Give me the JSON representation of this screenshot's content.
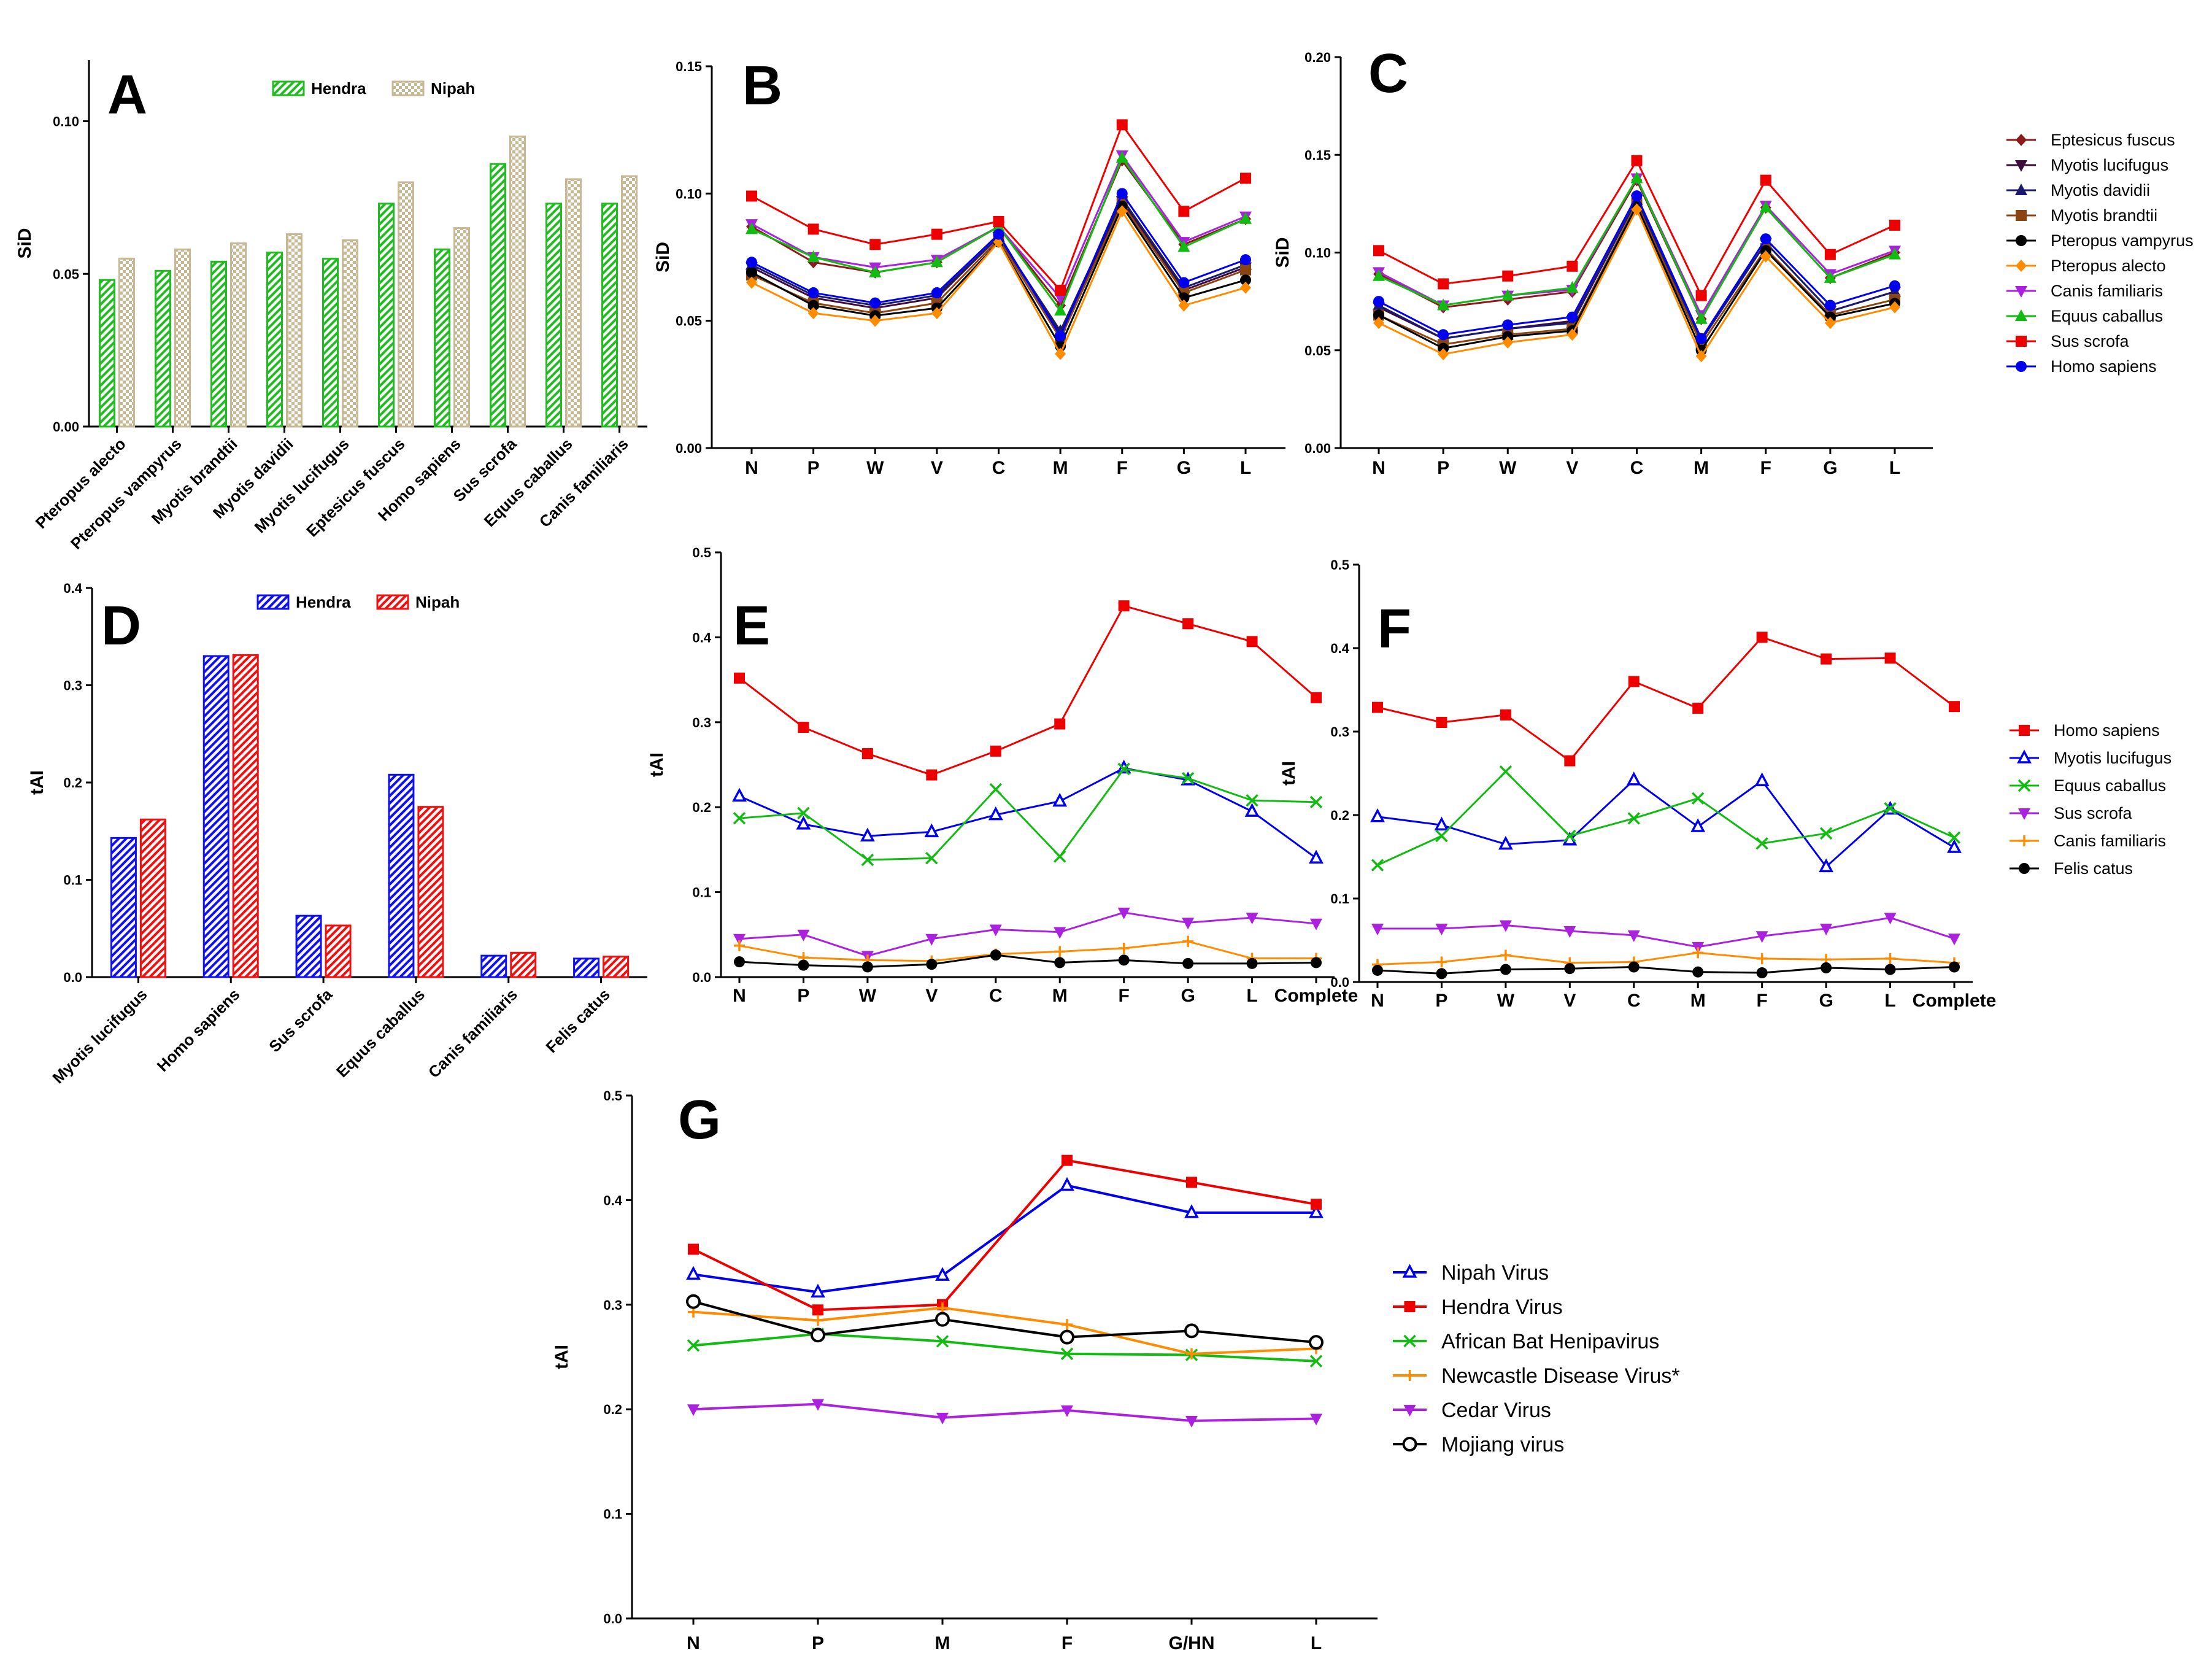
{
  "colors": {
    "green": "#22bb22",
    "tan": "#c8b894",
    "blue": "#1111ee",
    "red": "#ee1111",
    "darkred": "#8b1a1a",
    "darkpurple": "#3d0b3d",
    "navy": "#1a1a6e",
    "brown": "#8b4513",
    "black": "#000000",
    "orange": "#ff8c00",
    "magenta": "#aa22dd",
    "limegreen": "#11bb11",
    "scarlet": "#ee0000",
    "royalblue": "#0000ee"
  },
  "chart_data": [
    {
      "id": "A",
      "panel_label": "A",
      "type": "bar",
      "ylabel": "SiD",
      "ylim": [
        0,
        0.12
      ],
      "yticks": [
        "0.00",
        "0.05",
        "0.10"
      ],
      "categories": [
        "Pteropus alecto",
        "Pteropus vampyrus",
        "Myotis brandtii",
        "Myotis davidii",
        "Myotis lucifugus",
        "Eptesicus fuscus",
        "Homo sapiens",
        "Sus scrofa",
        "Equus caballus",
        "Canis familiaris"
      ],
      "legend": "top-center",
      "series": [
        {
          "name": "Hendra",
          "color": "green",
          "pattern": "diag",
          "values": [
            0.048,
            0.051,
            0.054,
            0.057,
            0.055,
            0.073,
            0.058,
            0.086,
            0.073,
            0.073
          ]
        },
        {
          "name": "Nipah",
          "color": "tan",
          "pattern": "check",
          "values": [
            0.055,
            0.058,
            0.06,
            0.063,
            0.061,
            0.08,
            0.065,
            0.095,
            0.081,
            0.082
          ]
        }
      ]
    },
    {
      "id": "B",
      "panel_label": "B",
      "type": "line",
      "ylabel": "SiD",
      "ylim": [
        0,
        0.15
      ],
      "yticks": [
        "0.00",
        "0.05",
        "0.10",
        "0.15"
      ],
      "categories": [
        "N",
        "P",
        "W",
        "V",
        "C",
        "M",
        "F",
        "G",
        "L"
      ],
      "series": [
        {
          "name": "Eptesicus fuscus",
          "color": "darkred",
          "marker": "diamond",
          "values": [
            0.087,
            0.073,
            0.069,
            0.073,
            0.087,
            0.056,
            0.113,
            0.08,
            0.09
          ]
        },
        {
          "name": "Myotis lucifugus",
          "color": "darkpurple",
          "marker": "tri-down",
          "values": [
            0.071,
            0.059,
            0.055,
            0.059,
            0.083,
            0.045,
            0.097,
            0.062,
            0.071
          ]
        },
        {
          "name": "Myotis davidii",
          "color": "navy",
          "marker": "tri-up",
          "values": [
            0.072,
            0.06,
            0.056,
            0.06,
            0.083,
            0.046,
            0.098,
            0.063,
            0.072
          ]
        },
        {
          "name": "Myotis brandtii",
          "color": "brown",
          "marker": "square",
          "values": [
            0.068,
            0.057,
            0.053,
            0.057,
            0.082,
            0.043,
            0.096,
            0.061,
            0.07
          ]
        },
        {
          "name": "Pteropus vampyrus",
          "color": "black",
          "marker": "circle",
          "values": [
            0.069,
            0.056,
            0.052,
            0.055,
            0.081,
            0.04,
            0.095,
            0.059,
            0.066
          ]
        },
        {
          "name": "Pteropus alecto",
          "color": "orange",
          "marker": "diamond",
          "values": [
            0.065,
            0.053,
            0.05,
            0.053,
            0.081,
            0.037,
            0.093,
            0.056,
            0.063
          ]
        },
        {
          "name": "Canis familiaris",
          "color": "magenta",
          "marker": "tri-down",
          "values": [
            0.088,
            0.075,
            0.071,
            0.074,
            0.087,
            0.059,
            0.115,
            0.081,
            0.091
          ]
        },
        {
          "name": "Equus caballus",
          "color": "limegreen",
          "marker": "tri-up",
          "values": [
            0.086,
            0.075,
            0.069,
            0.073,
            0.087,
            0.054,
            0.114,
            0.079,
            0.09
          ]
        },
        {
          "name": "Sus scrofa",
          "color": "scarlet",
          "marker": "square",
          "values": [
            0.099,
            0.086,
            0.08,
            0.084,
            0.089,
            0.062,
            0.127,
            0.093,
            0.106
          ]
        },
        {
          "name": "Homo sapiens",
          "color": "royalblue",
          "marker": "circle",
          "values": [
            0.073,
            0.061,
            0.057,
            0.061,
            0.084,
            0.044,
            0.1,
            0.065,
            0.074
          ]
        }
      ]
    },
    {
      "id": "C",
      "panel_label": "C",
      "type": "line",
      "ylabel": "SiD",
      "ylim": [
        0,
        0.2
      ],
      "yticks": [
        "0.00",
        "0.05",
        "0.10",
        "0.15",
        "0.20"
      ],
      "categories": [
        "N",
        "P",
        "W",
        "V",
        "C",
        "M",
        "F",
        "G",
        "L"
      ],
      "legend": "right",
      "series": [
        {
          "name": "Eptesicus fuscus",
          "color": "darkred",
          "marker": "diamond",
          "values": [
            0.089,
            0.072,
            0.076,
            0.08,
            0.137,
            0.066,
            0.123,
            0.087,
            0.1
          ]
        },
        {
          "name": "Myotis lucifugus",
          "color": "darkpurple",
          "marker": "tri-down",
          "values": [
            0.072,
            0.056,
            0.061,
            0.065,
            0.127,
            0.055,
            0.105,
            0.07,
            0.08
          ]
        },
        {
          "name": "Myotis davidii",
          "color": "navy",
          "marker": "tri-up",
          "values": [
            0.073,
            0.056,
            0.061,
            0.064,
            0.127,
            0.055,
            0.105,
            0.07,
            0.08
          ]
        },
        {
          "name": "Myotis brandtii",
          "color": "brown",
          "marker": "square",
          "values": [
            0.068,
            0.053,
            0.058,
            0.061,
            0.125,
            0.053,
            0.102,
            0.068,
            0.076
          ]
        },
        {
          "name": "Pteropus vampyrus",
          "color": "black",
          "marker": "circle",
          "values": [
            0.068,
            0.051,
            0.057,
            0.06,
            0.124,
            0.05,
            0.101,
            0.067,
            0.074
          ]
        },
        {
          "name": "Pteropus alecto",
          "color": "orange",
          "marker": "diamond",
          "values": [
            0.064,
            0.048,
            0.054,
            0.058,
            0.122,
            0.047,
            0.098,
            0.064,
            0.072
          ]
        },
        {
          "name": "Canis familiaris",
          "color": "magenta",
          "marker": "tri-down",
          "values": [
            0.09,
            0.073,
            0.078,
            0.081,
            0.138,
            0.068,
            0.124,
            0.089,
            0.101
          ]
        },
        {
          "name": "Equus caballus",
          "color": "limegreen",
          "marker": "tri-up",
          "values": [
            0.088,
            0.073,
            0.078,
            0.082,
            0.138,
            0.066,
            0.123,
            0.087,
            0.099
          ]
        },
        {
          "name": "Sus scrofa",
          "color": "scarlet",
          "marker": "square",
          "values": [
            0.101,
            0.084,
            0.088,
            0.093,
            0.147,
            0.078,
            0.137,
            0.099,
            0.114
          ]
        },
        {
          "name": "Homo sapiens",
          "color": "royalblue",
          "marker": "circle",
          "values": [
            0.075,
            0.058,
            0.063,
            0.067,
            0.129,
            0.056,
            0.107,
            0.073,
            0.083
          ]
        }
      ]
    },
    {
      "id": "D",
      "panel_label": "D",
      "type": "bar",
      "ylabel": "tAI",
      "ylim": [
        0,
        0.4
      ],
      "yticks": [
        "0.0",
        "0.1",
        "0.2",
        "0.3",
        "0.4"
      ],
      "categories": [
        "Myotis lucifugus",
        "Homo sapiens",
        "Sus scrofa",
        "Equus caballus",
        "Canis familiaris",
        "Felis catus"
      ],
      "legend": "top-center",
      "series": [
        {
          "name": "Hendra",
          "color": "blue",
          "pattern": "diag",
          "values": [
            0.143,
            0.33,
            0.063,
            0.208,
            0.022,
            0.019
          ]
        },
        {
          "name": "Nipah",
          "color": "red",
          "pattern": "diag",
          "values": [
            0.162,
            0.331,
            0.053,
            0.175,
            0.025,
            0.021
          ]
        }
      ]
    },
    {
      "id": "E",
      "panel_label": "E",
      "type": "line",
      "ylabel": "tAI",
      "ylim": [
        0,
        0.5
      ],
      "yticks": [
        "0.0",
        "0.1",
        "0.2",
        "0.3",
        "0.4",
        "0.5"
      ],
      "categories": [
        "N",
        "P",
        "W",
        "V",
        "C",
        "M",
        "F",
        "G",
        "L",
        "Complete"
      ],
      "series": [
        {
          "name": "Homo sapiens",
          "color": "scarlet",
          "marker": "square",
          "values": [
            0.352,
            0.294,
            0.263,
            0.238,
            0.266,
            0.298,
            0.437,
            0.416,
            0.395,
            0.329
          ]
        },
        {
          "name": "Myotis lucifugus",
          "color": "royalblue",
          "marker": "open-tri",
          "values": [
            0.213,
            0.18,
            0.166,
            0.171,
            0.191,
            0.207,
            0.246,
            0.232,
            0.195,
            0.14
          ]
        },
        {
          "name": "Equus caballus",
          "color": "limegreen",
          "marker": "x",
          "values": [
            0.187,
            0.193,
            0.138,
            0.14,
            0.221,
            0.142,
            0.245,
            0.234,
            0.208,
            0.206
          ]
        },
        {
          "name": "Sus scrofa",
          "color": "magenta",
          "marker": "tri-down",
          "values": [
            0.045,
            0.05,
            0.025,
            0.045,
            0.056,
            0.053,
            0.076,
            0.064,
            0.07,
            0.063
          ]
        },
        {
          "name": "Canis familiaris",
          "color": "orange",
          "marker": "plus",
          "values": [
            0.037,
            0.023,
            0.02,
            0.019,
            0.027,
            0.03,
            0.034,
            0.042,
            0.022,
            0.022
          ]
        },
        {
          "name": "Felis catus",
          "color": "black",
          "marker": "circle",
          "values": [
            0.018,
            0.014,
            0.012,
            0.015,
            0.026,
            0.017,
            0.02,
            0.016,
            0.016,
            0.017
          ]
        }
      ]
    },
    {
      "id": "F",
      "panel_label": "F",
      "type": "line",
      "ylabel": "tAI",
      "ylim": [
        0,
        0.5
      ],
      "yticks": [
        "0.0",
        "0.1",
        "0.2",
        "0.3",
        "0.4",
        "0.5"
      ],
      "categories": [
        "N",
        "P",
        "W",
        "V",
        "C",
        "M",
        "F",
        "G",
        "L",
        "Complete"
      ],
      "legend": "right",
      "series": [
        {
          "name": "Homo sapiens",
          "color": "scarlet",
          "marker": "square",
          "values": [
            0.329,
            0.311,
            0.32,
            0.265,
            0.36,
            0.328,
            0.413,
            0.387,
            0.388,
            0.33
          ]
        },
        {
          "name": "Myotis lucifugus",
          "color": "royalblue",
          "marker": "open-tri",
          "values": [
            0.198,
            0.188,
            0.165,
            0.17,
            0.242,
            0.186,
            0.241,
            0.138,
            0.207,
            0.161
          ]
        },
        {
          "name": "Equus caballus",
          "color": "limegreen",
          "marker": "x",
          "values": [
            0.14,
            0.175,
            0.252,
            0.175,
            0.196,
            0.22,
            0.166,
            0.178,
            0.208,
            0.173
          ]
        },
        {
          "name": "Sus scrofa",
          "color": "magenta",
          "marker": "tri-down",
          "values": [
            0.064,
            0.064,
            0.068,
            0.061,
            0.056,
            0.042,
            0.055,
            0.064,
            0.077,
            0.052
          ]
        },
        {
          "name": "Canis familiaris",
          "color": "orange",
          "marker": "plus",
          "values": [
            0.021,
            0.024,
            0.032,
            0.023,
            0.024,
            0.035,
            0.028,
            0.027,
            0.028,
            0.023
          ]
        },
        {
          "name": "Felis catus",
          "color": "black",
          "marker": "circle",
          "values": [
            0.014,
            0.01,
            0.015,
            0.016,
            0.018,
            0.012,
            0.011,
            0.017,
            0.015,
            0.018
          ]
        }
      ]
    },
    {
      "id": "G",
      "panel_label": "G",
      "type": "line",
      "ylabel": "tAI",
      "ylim": [
        0,
        0.5
      ],
      "yticks": [
        "0.0",
        "0.1",
        "0.2",
        "0.3",
        "0.4",
        "0.5"
      ],
      "categories": [
        "N",
        "P",
        "M",
        "F",
        "G/HN",
        "L"
      ],
      "legend": "right",
      "series": [
        {
          "name": "Nipah Virus",
          "color": "royalblue",
          "marker": "open-tri",
          "values": [
            0.329,
            0.312,
            0.328,
            0.414,
            0.388,
            0.388
          ]
        },
        {
          "name": "Hendra Virus",
          "color": "scarlet",
          "marker": "square",
          "values": [
            0.353,
            0.295,
            0.3,
            0.438,
            0.417,
            0.396
          ]
        },
        {
          "name": "African Bat Henipavirus",
          "color": "limegreen",
          "marker": "x",
          "values": [
            0.261,
            0.272,
            0.265,
            0.253,
            0.252,
            0.246
          ]
        },
        {
          "name": "Newcastle Disease Virus*",
          "color": "orange",
          "marker": "plus",
          "values": [
            0.293,
            0.285,
            0.297,
            0.281,
            0.253,
            0.258
          ]
        },
        {
          "name": "Cedar Virus",
          "color": "magenta",
          "marker": "tri-down",
          "values": [
            0.2,
            0.205,
            0.192,
            0.199,
            0.189,
            0.191
          ]
        },
        {
          "name": "Mojiang virus",
          "color": "black",
          "marker": "open-circle",
          "values": [
            0.303,
            0.271,
            0.286,
            0.269,
            0.275,
            0.264
          ]
        }
      ]
    }
  ]
}
